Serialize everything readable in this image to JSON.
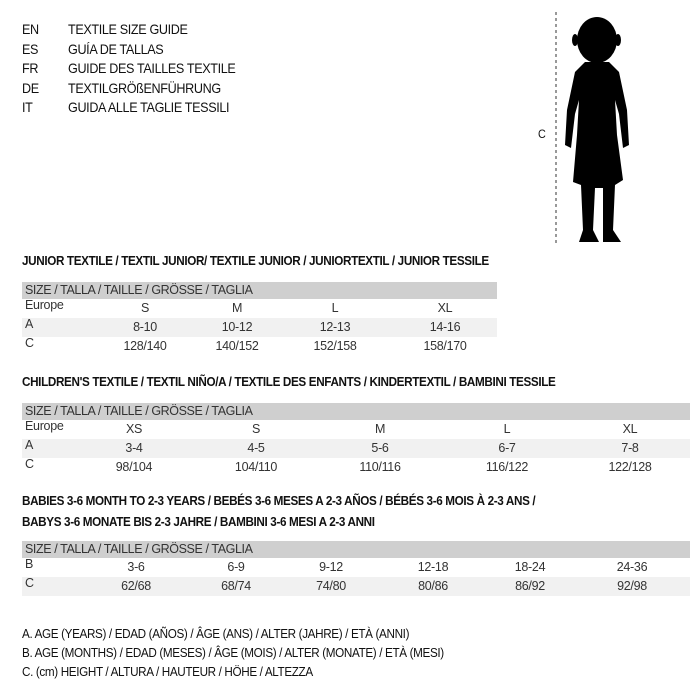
{
  "languages": [
    {
      "code": "EN",
      "title": "TEXTILE SIZE GUIDE"
    },
    {
      "code": "ES",
      "title": "GUÍA DE TALLAS"
    },
    {
      "code": "FR",
      "title": "GUIDE DES TAILLES TEXTILE"
    },
    {
      "code": "DE",
      "title": "TEXTILGRÖßENFÜHRUNG"
    },
    {
      "code": "IT",
      "title": "GUIDA ALLE TAGLIE TESSILI"
    }
  ],
  "figure": {
    "measure_label": "C"
  },
  "junior": {
    "title": "JUNIOR TEXTILE / TEXTIL JUNIOR/ TEXTILE JUNIOR / JUNIORTEXTIL / JUNIOR TESSILE",
    "header": "SIZE / TALLA / TAILLE / GRÖSSE / TAGLIA",
    "rows": [
      {
        "label": "Europe",
        "values": [
          "S",
          "M",
          "L",
          "XL"
        ]
      },
      {
        "label": "A",
        "values": [
          "8-10",
          "10-12",
          "12-13",
          "14-16"
        ]
      },
      {
        "label": "C",
        "values": [
          "128/140",
          "140/152",
          "152/158",
          "158/170"
        ]
      }
    ]
  },
  "children": {
    "title": "CHILDREN'S TEXTILE / TEXTIL NIÑO/A / TEXTILE DES ENFANTS / KINDERTEXTIL / BAMBINI TESSILE",
    "header": "SIZE / TALLA / TAILLE / GRÖSSE / TAGLIA",
    "rows": [
      {
        "label": "Europe",
        "values": [
          "XS",
          "S",
          "M",
          "L",
          "XL"
        ]
      },
      {
        "label": "A",
        "values": [
          "3-4",
          "4-5",
          "5-6",
          "6-7",
          "7-8"
        ]
      },
      {
        "label": "C",
        "values": [
          "98/104",
          "104/110",
          "110/116",
          "116/122",
          "122/128"
        ]
      }
    ]
  },
  "babies": {
    "title_line1": "BABIES 3-6 MONTH TO 2-3 YEARS / BEBÉS 3-6 MESES A 2-3 AÑOS / BÉBÉS 3-6 MOIS À 2-3 ANS /",
    "title_line2": "BABYS 3-6 MONATE BIS 2-3 JAHRE / BAMBINI 3-6 MESI A 2-3 ANNI",
    "header": "SIZE / TALLA / TAILLE / GRÖSSE / TAGLIA",
    "rows": [
      {
        "label": "B",
        "values": [
          "3-6",
          "6-9",
          "9-12",
          "12-18",
          "18-24",
          "24-36"
        ]
      },
      {
        "label": "C",
        "values": [
          "62/68",
          "68/74",
          "74/80",
          "80/86",
          "86/92",
          "92/98"
        ]
      }
    ]
  },
  "legend": [
    "A. AGE (YEARS) / EDAD (AÑOS) / ÂGE (ANS) / ALTER (JAHRE) / ETÀ (ANNI)",
    "B. AGE (MONTHS) / EDAD (MESES) / ÂGE (MOIS) / ALTER (MONATE) / ETÀ (MESI)",
    "C. (cm) HEIGHT / ALTURA / HAUTEUR / HÖHE / ALTEZZA"
  ]
}
